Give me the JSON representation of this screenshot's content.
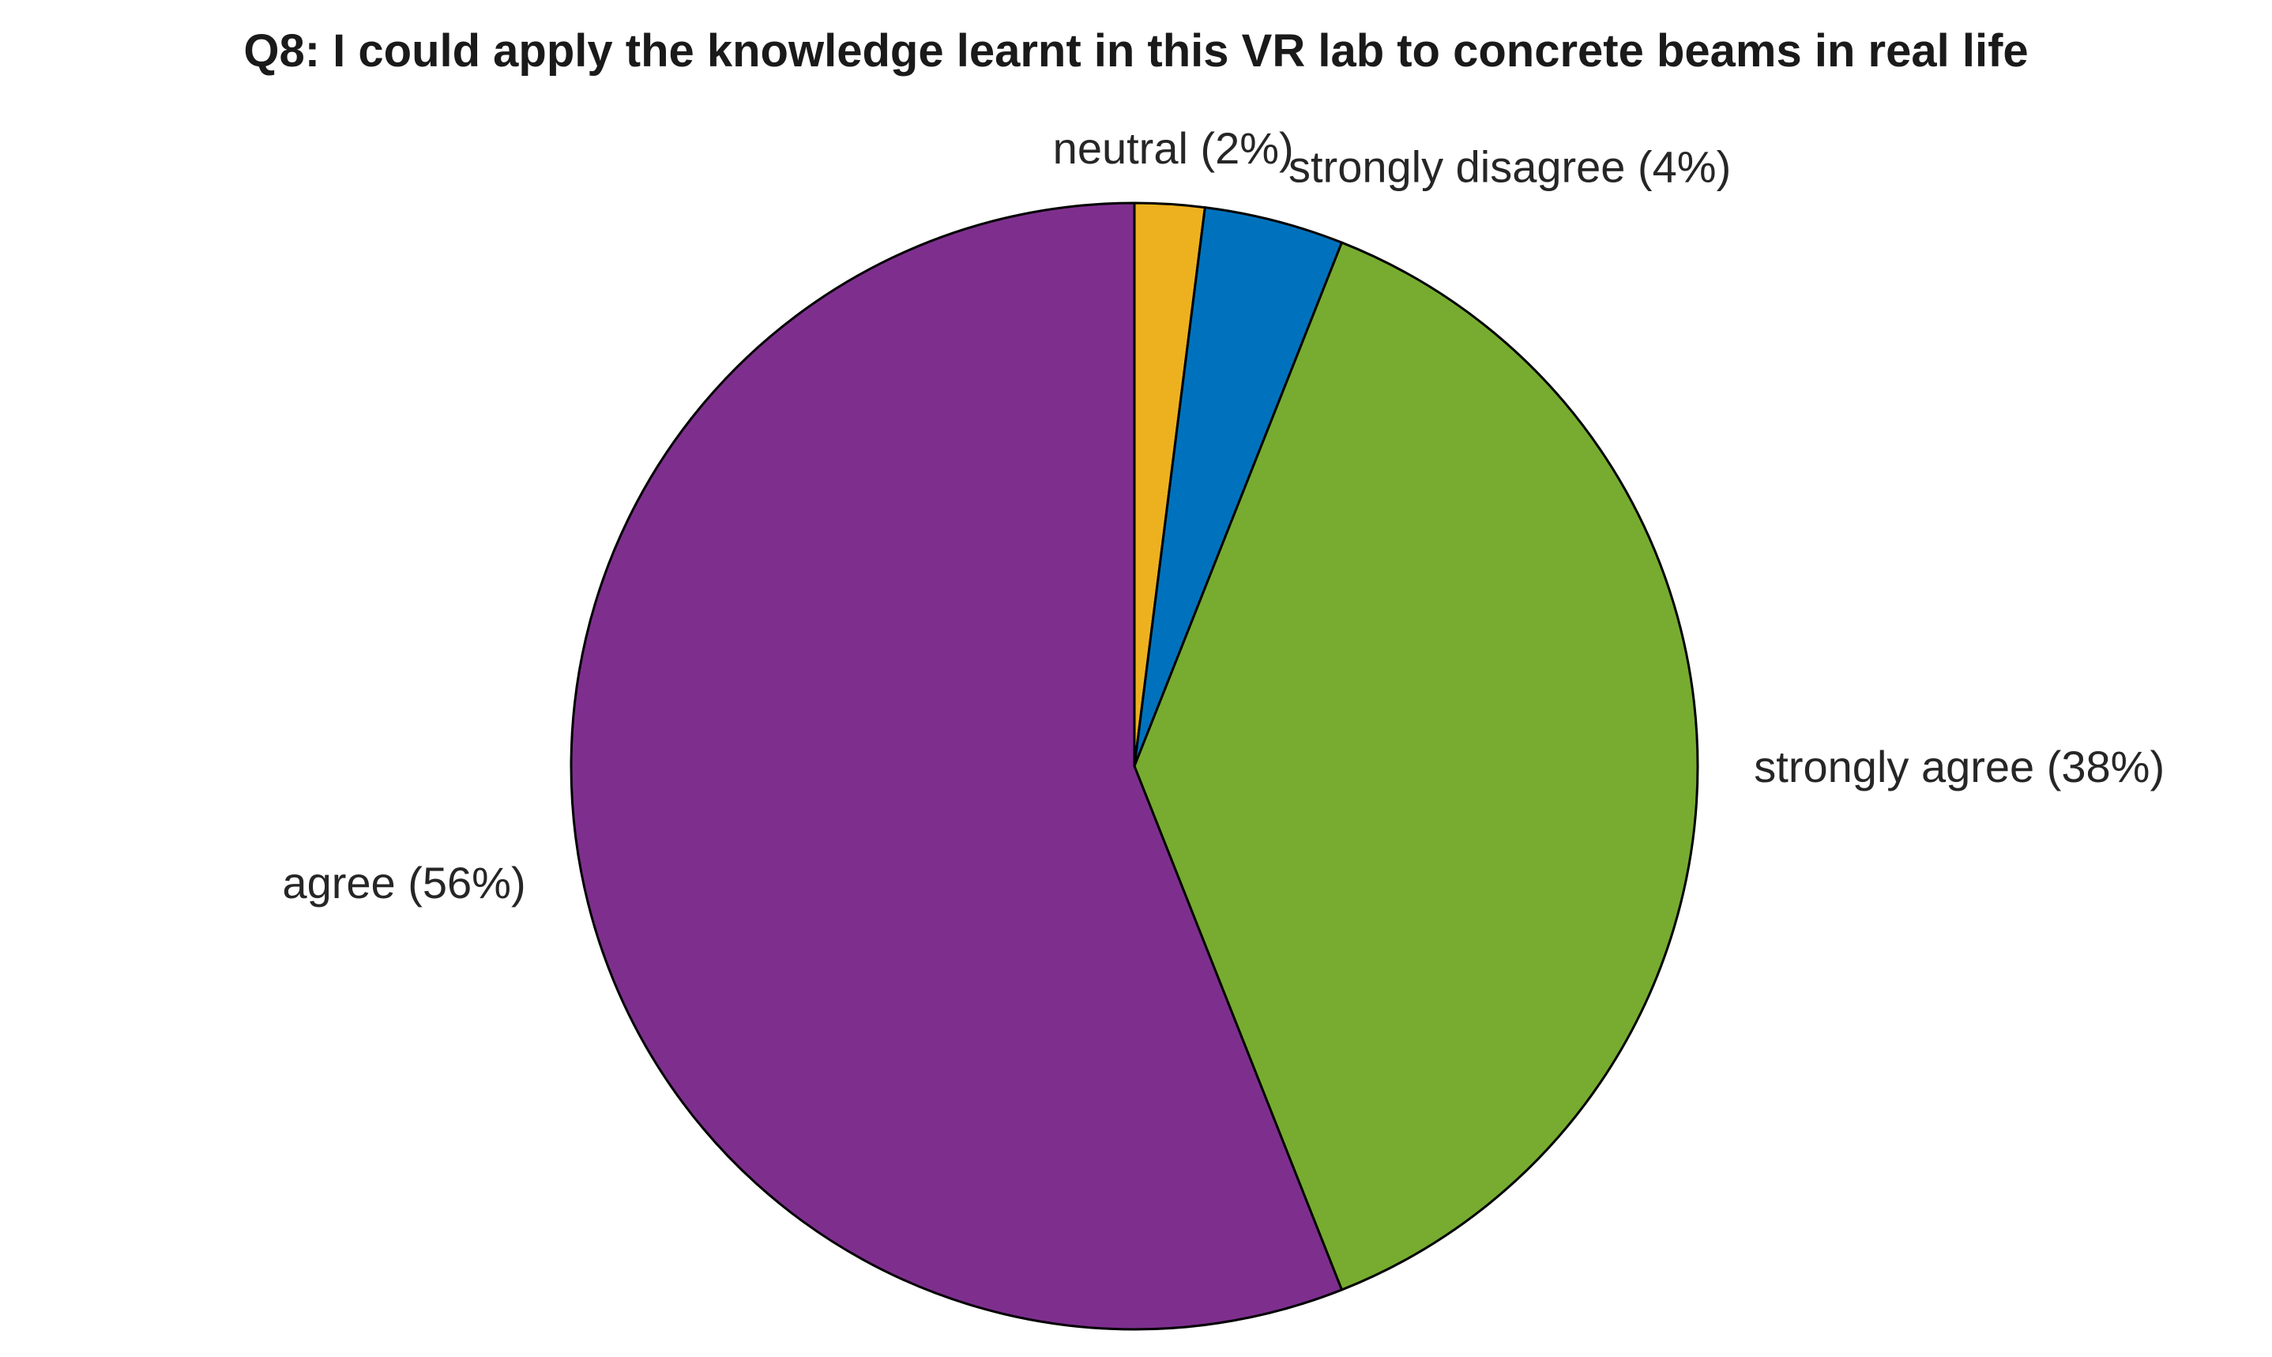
{
  "chart_data": {
    "type": "pie",
    "title": "Q8: I could apply the knowledge learnt in this VR lab to concrete beams in real life",
    "slices": [
      {
        "label": "neutral (2%)",
        "value": 2,
        "color": "#EDB120"
      },
      {
        "label": "strongly disagree (4%)",
        "value": 4,
        "color": "#0072BD"
      },
      {
        "label": "strongly agree (38%)",
        "value": 38,
        "color": "#77AC30"
      },
      {
        "label": "agree (56%)",
        "value": 56,
        "color": "#7E2F8E"
      }
    ],
    "start_angle": "top (12 o'clock)",
    "direction": "clockwise",
    "legend": "none",
    "grid": false
  }
}
